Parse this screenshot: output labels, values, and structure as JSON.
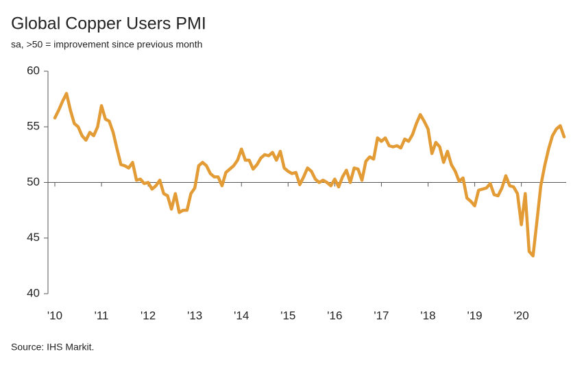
{
  "chart_data": {
    "type": "line",
    "title": "Global Copper Users PMI",
    "subtitle": "sa, >50 = improvement since previous month",
    "source": "Source: IHS Markit.",
    "categories": [
      "'10",
      null,
      null,
      null,
      null,
      null,
      null,
      null,
      null,
      null,
      null,
      null,
      "'11",
      null,
      null,
      null,
      null,
      null,
      null,
      null,
      null,
      null,
      null,
      null,
      "'12",
      null,
      null,
      null,
      null,
      null,
      null,
      null,
      null,
      null,
      null,
      null,
      "'13",
      null,
      null,
      null,
      null,
      null,
      null,
      null,
      null,
      null,
      null,
      null,
      "'14",
      null,
      null,
      null,
      null,
      null,
      null,
      null,
      null,
      null,
      null,
      null,
      "'15",
      null,
      null,
      null,
      null,
      null,
      null,
      null,
      null,
      null,
      null,
      null,
      "'16",
      null,
      null,
      null,
      null,
      null,
      null,
      null,
      null,
      null,
      null,
      null,
      "'17",
      null,
      null,
      null,
      null,
      null,
      null,
      null,
      null,
      null,
      null,
      null,
      "'18",
      null,
      null,
      null,
      null,
      null,
      null,
      null,
      null,
      null,
      null,
      null,
      "'19",
      null,
      null,
      null,
      null,
      null,
      null,
      null,
      null,
      null,
      null,
      null,
      "'20",
      null,
      null,
      null,
      null,
      null,
      null,
      null,
      null,
      null,
      null,
      null
    ],
    "series": [
      {
        "name": "Global Copper Users PMI",
        "color": "#e39b35",
        "values": [
          55.8,
          56.5,
          57.3,
          58.0,
          56.5,
          55.3,
          55.0,
          54.2,
          53.8,
          54.5,
          54.2,
          55.0,
          56.9,
          55.7,
          55.5,
          54.5,
          53.0,
          51.6,
          51.5,
          51.3,
          51.8,
          50.2,
          50.3,
          49.9,
          50.0,
          49.4,
          49.7,
          50.2,
          49.0,
          48.8,
          47.6,
          49.0,
          47.3,
          47.5,
          47.5,
          49.0,
          49.5,
          51.5,
          51.8,
          51.5,
          50.8,
          50.5,
          50.5,
          49.7,
          50.9,
          51.2,
          51.5,
          52.0,
          53.0,
          52.0,
          52.0,
          51.2,
          51.6,
          52.2,
          52.5,
          52.4,
          52.7,
          52.0,
          52.8,
          51.3,
          51.0,
          50.8,
          50.9,
          49.8,
          50.5,
          51.3,
          51.0,
          50.3,
          50.0,
          50.2,
          50.0,
          49.7,
          50.3,
          49.6,
          50.5,
          51.1,
          50.0,
          51.3,
          51.2,
          50.2,
          51.9,
          52.3,
          52.1,
          54.0,
          53.7,
          54.0,
          53.3,
          53.2,
          53.3,
          53.1,
          53.9,
          53.7,
          54.3,
          55.3,
          56.1,
          55.5,
          54.8,
          52.6,
          53.6,
          53.2,
          51.8,
          52.8,
          51.6,
          51.0,
          50.1,
          50.4,
          48.6,
          48.3,
          47.9,
          49.3,
          49.4,
          49.5,
          49.9,
          48.9,
          48.8,
          49.5,
          50.6,
          49.7,
          49.6,
          49.0,
          46.2,
          49.0,
          43.8,
          43.4,
          46.5,
          49.7,
          51.5,
          53.0,
          54.2,
          54.8,
          55.1,
          54.1
        ]
      }
    ],
    "ylim": [
      40,
      60
    ],
    "yticks": [
      40,
      45,
      50,
      55,
      60
    ],
    "x_axis_at": 50
  }
}
